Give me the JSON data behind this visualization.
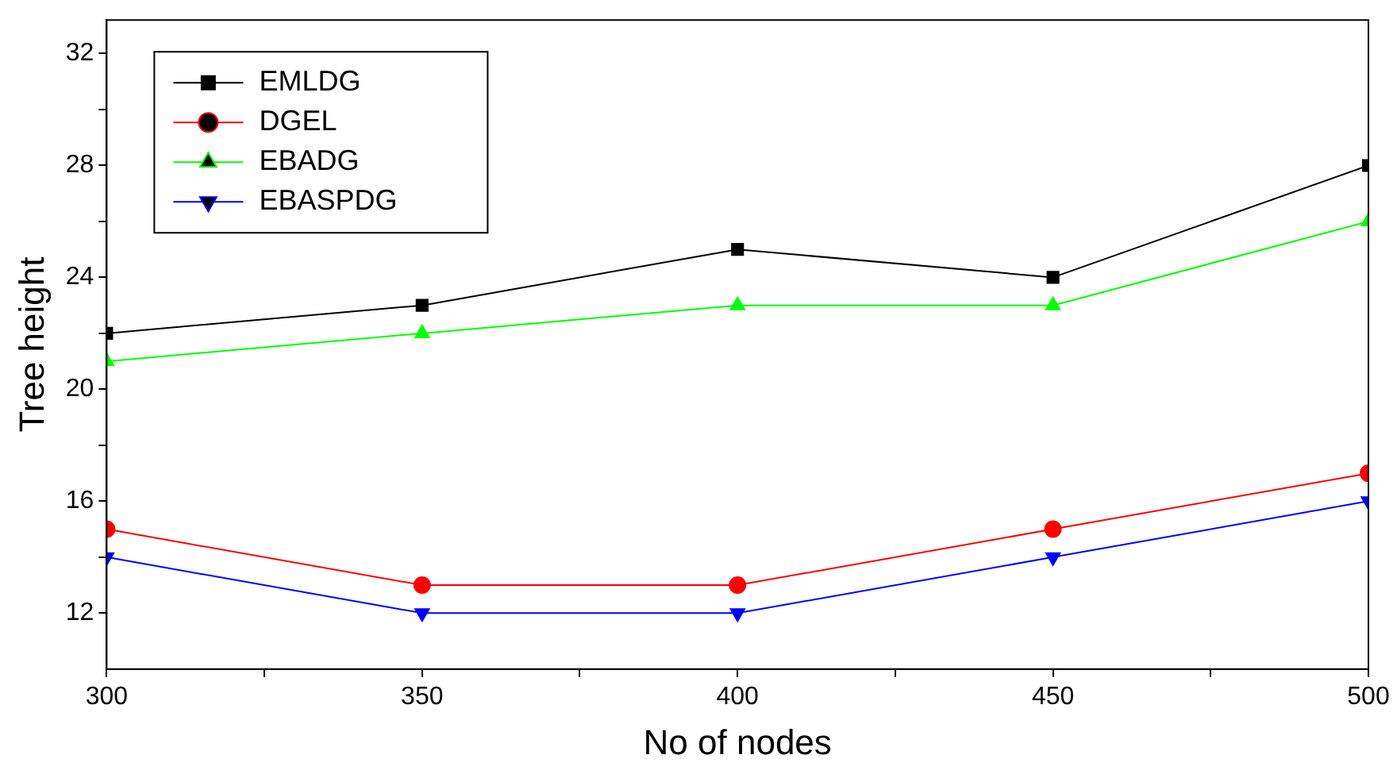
{
  "chart_data": {
    "type": "line",
    "xlabel": "No of nodes",
    "ylabel": "Tree height",
    "x": [
      300,
      350,
      400,
      450,
      500
    ],
    "series": [
      {
        "name": "EMLDG",
        "color": "#000000",
        "marker": "square",
        "values": [
          22,
          23,
          25,
          24,
          28
        ]
      },
      {
        "name": "DGEL",
        "color": "#ff0000",
        "marker": "circle",
        "values": [
          15,
          13,
          13,
          15,
          17
        ]
      },
      {
        "name": "EBADG",
        "color": "#00ff00",
        "marker": "triangle",
        "values": [
          21,
          22,
          23,
          23,
          26
        ]
      },
      {
        "name": "EBASPDG",
        "color": "#0000ff",
        "marker": "triangle_down",
        "values": [
          14,
          12,
          12,
          14,
          16
        ]
      }
    ],
    "xlim": [
      300,
      500
    ],
    "xticks": [
      300,
      {
        "value": 325,
        "label": null
      },
      350,
      {
        "value": 375,
        "label": null
      },
      400,
      {
        "value": 425,
        "label": null
      },
      450,
      {
        "value": 475,
        "label": null
      },
      500
    ],
    "ylim": [
      10,
      33.2
    ],
    "yticks": [
      12,
      {
        "value": 14,
        "label": null
      },
      16,
      {
        "value": 18,
        "label": null
      },
      20,
      {
        "value": 22,
        "label": null
      },
      24,
      {
        "value": 26,
        "label": null
      },
      28,
      {
        "value": 30,
        "label": null
      },
      32
    ],
    "grid": false,
    "legend": "top left",
    "line_style": "solid"
  }
}
